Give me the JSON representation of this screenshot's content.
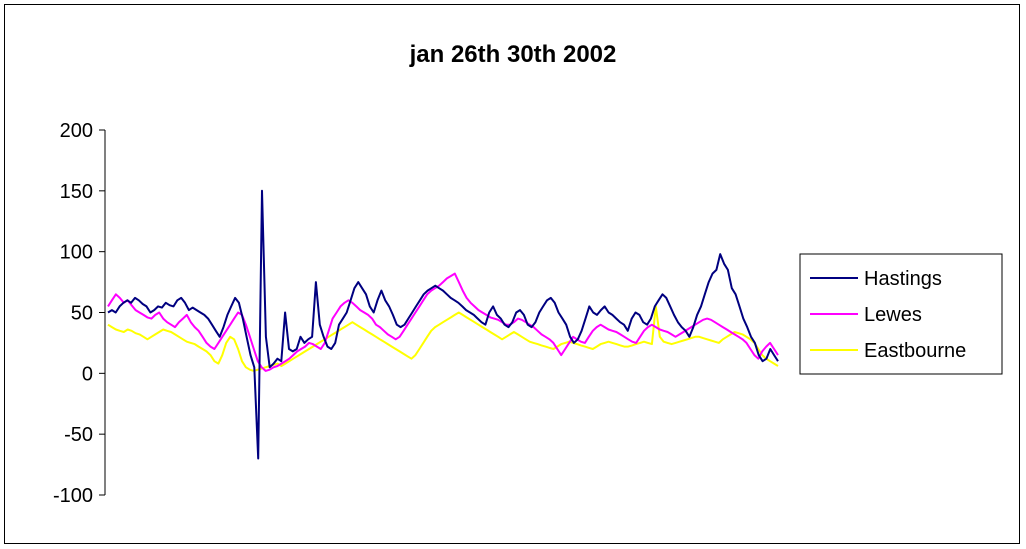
{
  "chart_data": {
    "type": "line",
    "title": "jan 26th 30th 2002",
    "xlabel": "",
    "ylabel": "",
    "ylim": [
      -100,
      200
    ],
    "yticks": [
      200,
      150,
      100,
      50,
      0,
      -50,
      -100
    ],
    "grid": false,
    "legend_position": "right",
    "series": [
      {
        "name": "Hastings",
        "color": "#000080",
        "values": [
          50,
          52,
          50,
          55,
          58,
          60,
          58,
          62,
          60,
          57,
          55,
          50,
          52,
          55,
          54,
          58,
          56,
          55,
          60,
          62,
          58,
          52,
          54,
          52,
          50,
          48,
          45,
          40,
          35,
          30,
          38,
          48,
          55,
          62,
          58,
          45,
          30,
          15,
          5,
          -70,
          150,
          30,
          5,
          8,
          12,
          10,
          50,
          20,
          18,
          20,
          30,
          25,
          28,
          30,
          75,
          40,
          30,
          22,
          20,
          25,
          40,
          45,
          50,
          60,
          70,
          75,
          70,
          65,
          55,
          50,
          60,
          68,
          60,
          55,
          48,
          40,
          38,
          40,
          45,
          50,
          55,
          60,
          65,
          68,
          70,
          72,
          70,
          68,
          65,
          62,
          60,
          58,
          55,
          52,
          50,
          48,
          45,
          42,
          40,
          50,
          55,
          48,
          45,
          40,
          38,
          42,
          50,
          52,
          48,
          40,
          38,
          42,
          50,
          55,
          60,
          62,
          58,
          50,
          45,
          40,
          30,
          25,
          28,
          35,
          45,
          55,
          50,
          48,
          52,
          55,
          50,
          48,
          45,
          42,
          40,
          35,
          45,
          50,
          48,
          42,
          40,
          45,
          55,
          60,
          65,
          62,
          55,
          48,
          42,
          38,
          35,
          30,
          38,
          48,
          55,
          65,
          75,
          82,
          85,
          98,
          90,
          85,
          70,
          65,
          55,
          45,
          38,
          30,
          25,
          15,
          10,
          12,
          20,
          15,
          10
        ],
        "description_values_count": 171
      },
      {
        "name": "Lewes",
        "color": "#FF00FF",
        "values": [
          55,
          60,
          65,
          62,
          58,
          60,
          56,
          52,
          50,
          48,
          46,
          45,
          48,
          50,
          45,
          42,
          40,
          38,
          42,
          45,
          48,
          42,
          38,
          35,
          30,
          25,
          22,
          20,
          25,
          30,
          35,
          40,
          45,
          50,
          48,
          40,
          30,
          20,
          10,
          5,
          2,
          3,
          5,
          6,
          8,
          10,
          12,
          15,
          18,
          20,
          22,
          25,
          24,
          22,
          20,
          25,
          35,
          45,
          50,
          55,
          58,
          60,
          58,
          55,
          52,
          50,
          48,
          45,
          40,
          38,
          35,
          32,
          30,
          28,
          30,
          35,
          40,
          45,
          50,
          55,
          60,
          65,
          68,
          70,
          72,
          75,
          78,
          80,
          82,
          75,
          68,
          62,
          58,
          55,
          52,
          50,
          48,
          46,
          45,
          44,
          42,
          40,
          40,
          42,
          45,
          44,
          42,
          40,
          38,
          35,
          32,
          30,
          28,
          25,
          20,
          15,
          20,
          25,
          30,
          28,
          26,
          25,
          30,
          35,
          38,
          40,
          38,
          36,
          35,
          34,
          32,
          30,
          28,
          26,
          25,
          30,
          35,
          38,
          40,
          38,
          36,
          35,
          34,
          32,
          30,
          32,
          34,
          36,
          38,
          40,
          42,
          44,
          45,
          44,
          42,
          40,
          38,
          36,
          34,
          32,
          30,
          28,
          25,
          20,
          15,
          12,
          18,
          22,
          25,
          20,
          15
        ]
      },
      {
        "name": "Eastbourne",
        "color": "#FFFF00",
        "values": [
          40,
          38,
          36,
          35,
          34,
          36,
          35,
          33,
          32,
          30,
          28,
          30,
          32,
          34,
          36,
          35,
          34,
          32,
          30,
          28,
          26,
          25,
          24,
          22,
          20,
          18,
          15,
          10,
          8,
          15,
          25,
          30,
          28,
          20,
          10,
          5,
          3,
          2,
          3,
          4,
          5,
          6,
          7,
          8,
          6,
          8,
          10,
          12,
          14,
          16,
          18,
          20,
          22,
          24,
          26,
          28,
          30,
          32,
          34,
          36,
          38,
          40,
          42,
          40,
          38,
          36,
          34,
          32,
          30,
          28,
          26,
          24,
          22,
          20,
          18,
          16,
          14,
          12,
          15,
          20,
          25,
          30,
          35,
          38,
          40,
          42,
          44,
          46,
          48,
          50,
          48,
          46,
          44,
          42,
          40,
          38,
          36,
          34,
          32,
          30,
          28,
          30,
          32,
          34,
          32,
          30,
          28,
          26,
          25,
          24,
          23,
          22,
          21,
          20,
          22,
          24,
          25,
          26,
          25,
          24,
          23,
          22,
          21,
          20,
          22,
          24,
          25,
          26,
          25,
          24,
          23,
          22,
          22,
          23,
          24,
          25,
          26,
          25,
          24,
          55,
          30,
          26,
          25,
          24,
          25,
          26,
          27,
          28,
          29,
          30,
          30,
          29,
          28,
          27,
          26,
          25,
          28,
          30,
          32,
          34,
          33,
          32,
          30,
          28,
          25,
          20,
          15,
          12,
          10,
          8,
          6
        ]
      }
    ]
  },
  "legend": {
    "items": [
      "Hastings",
      "Lewes",
      "Eastbourne"
    ]
  }
}
